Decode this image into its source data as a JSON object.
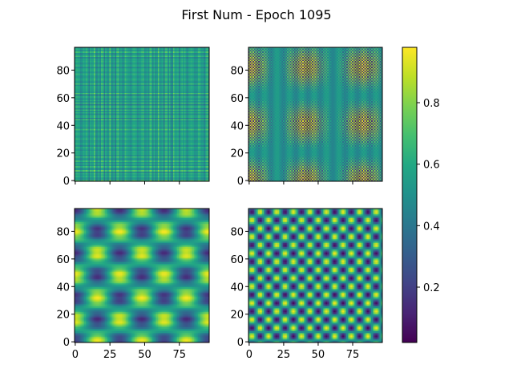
{
  "chart_data": {
    "type": "heatmap",
    "title": "First Num - Epoch 1095",
    "layout": "2x2 grid of heatmaps with shared x/y axes and one shared colorbar",
    "colormap": "viridis",
    "grid": false,
    "size": 97,
    "xlim": [
      0,
      96
    ],
    "ylim": [
      0,
      96
    ],
    "x_ticks": [
      0,
      25,
      50,
      75
    ],
    "y_ticks": [
      0,
      20,
      40,
      60,
      80
    ],
    "x_tick_labels_shown_on": "bottom row only",
    "y_tick_labels_shown_on": "all panels",
    "colorbar": {
      "range": [
        0.02,
        0.98
      ],
      "ticks": [
        0.2,
        0.4,
        0.6,
        0.8
      ],
      "tick_labels": [
        "0.2",
        "0.4",
        "0.6",
        "0.8"
      ],
      "position": "right"
    },
    "panels": [
      {
        "position": "top-left",
        "description": "fine irregular stripe / plaid pattern, values mostly 0.3-0.8"
      },
      {
        "position": "top-right",
        "description": "very fine high-frequency checker pattern, values 0.1-0.9"
      },
      {
        "position": "bottom-left",
        "description": "smooth low-frequency blobs with period of about 32, values 0.15-0.95"
      },
      {
        "position": "bottom-right",
        "description": "medium-frequency blob lattice with period of about 12, values 0.05-0.98"
      }
    ]
  }
}
